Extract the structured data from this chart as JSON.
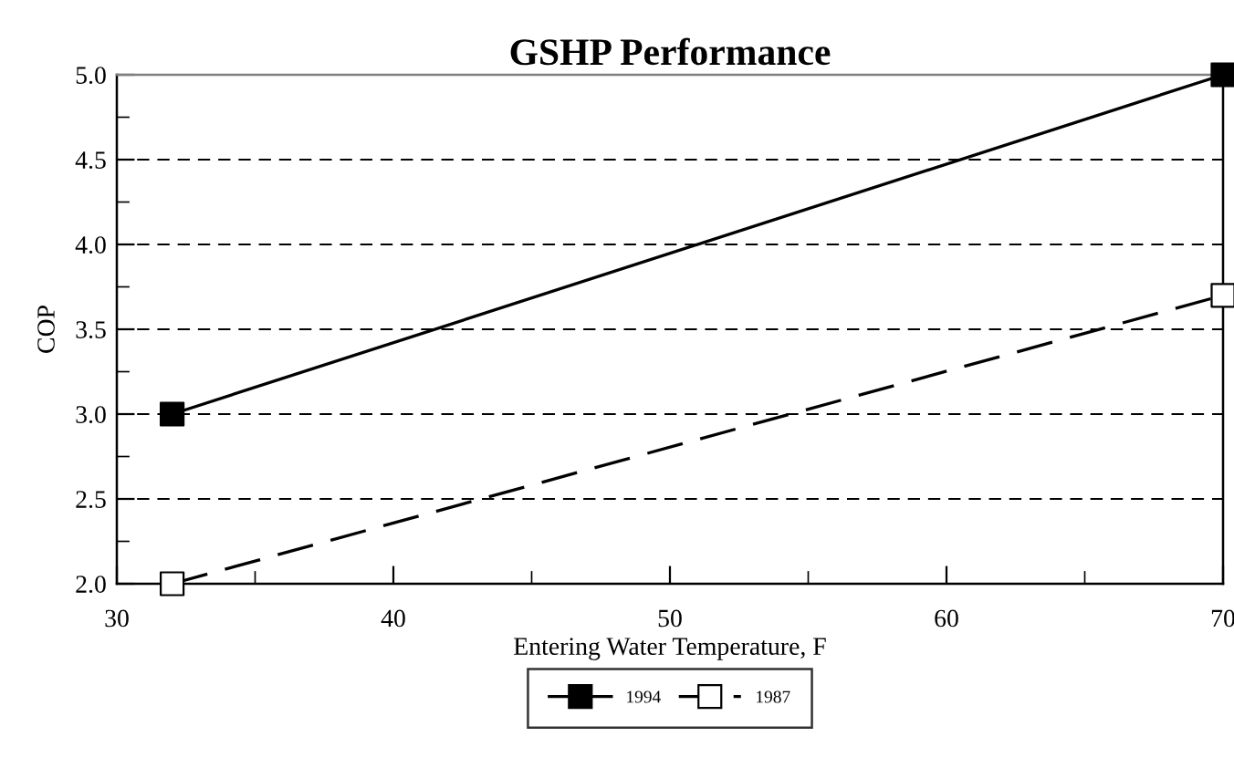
{
  "chart_data": {
    "type": "line",
    "title": "GSHP Performance",
    "xlabel": "Entering Water Temperature, F",
    "ylabel": "COP",
    "series": [
      {
        "name": "1994",
        "color": "#000000",
        "values": [
          3.0,
          5.0
        ],
        "line_style": "solid"
      },
      {
        "name": "1987",
        "color": "#000000",
        "values": [
          2.0,
          3.7
        ],
        "line_style": "dashed"
      }
    ],
    "x": [
      32,
      70
    ],
    "xlim": [
      30,
      70
    ],
    "xticks": [
      30,
      40,
      50,
      60,
      70
    ],
    "ylim": [
      2.0,
      5.0
    ],
    "yticks": [
      {
        "value": 2.0,
        "label": "2.0"
      },
      {
        "value": 2.5,
        "label": "2.5"
      },
      {
        "value": 3.0,
        "label": "3.0"
      },
      {
        "value": 3.5,
        "label": "3.5"
      },
      {
        "value": 4.0,
        "label": "4.0"
      },
      {
        "value": 4.5,
        "label": "4.5"
      },
      {
        "value": 5.0,
        "label": "5.0"
      }
    ],
    "grid": "y",
    "legend": "bottom",
    "marker": "square"
  }
}
